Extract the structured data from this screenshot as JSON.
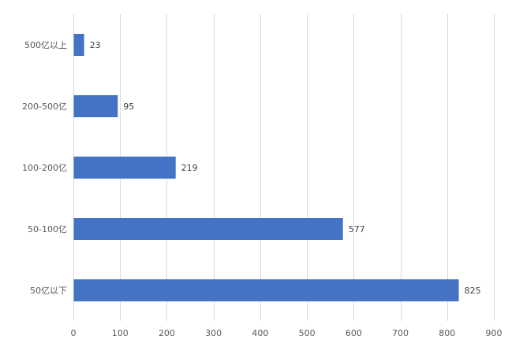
{
  "chart_data": {
    "type": "bar",
    "orientation": "horizontal",
    "categories": [
      "500亿以上",
      "200-500亿",
      "100-200亿",
      "50-100亿",
      "50亿以下"
    ],
    "values": [
      23,
      95,
      219,
      577,
      825
    ],
    "title": "",
    "xlabel": "",
    "ylabel": "",
    "xlim": [
      0,
      900
    ],
    "x_ticks": [
      0,
      100,
      200,
      300,
      400,
      500,
      600,
      700,
      800,
      900
    ],
    "grid": true,
    "legend": "none",
    "show_data_labels": true,
    "bar_color": "#4472C4",
    "grid_color": "#D9D9D9"
  }
}
